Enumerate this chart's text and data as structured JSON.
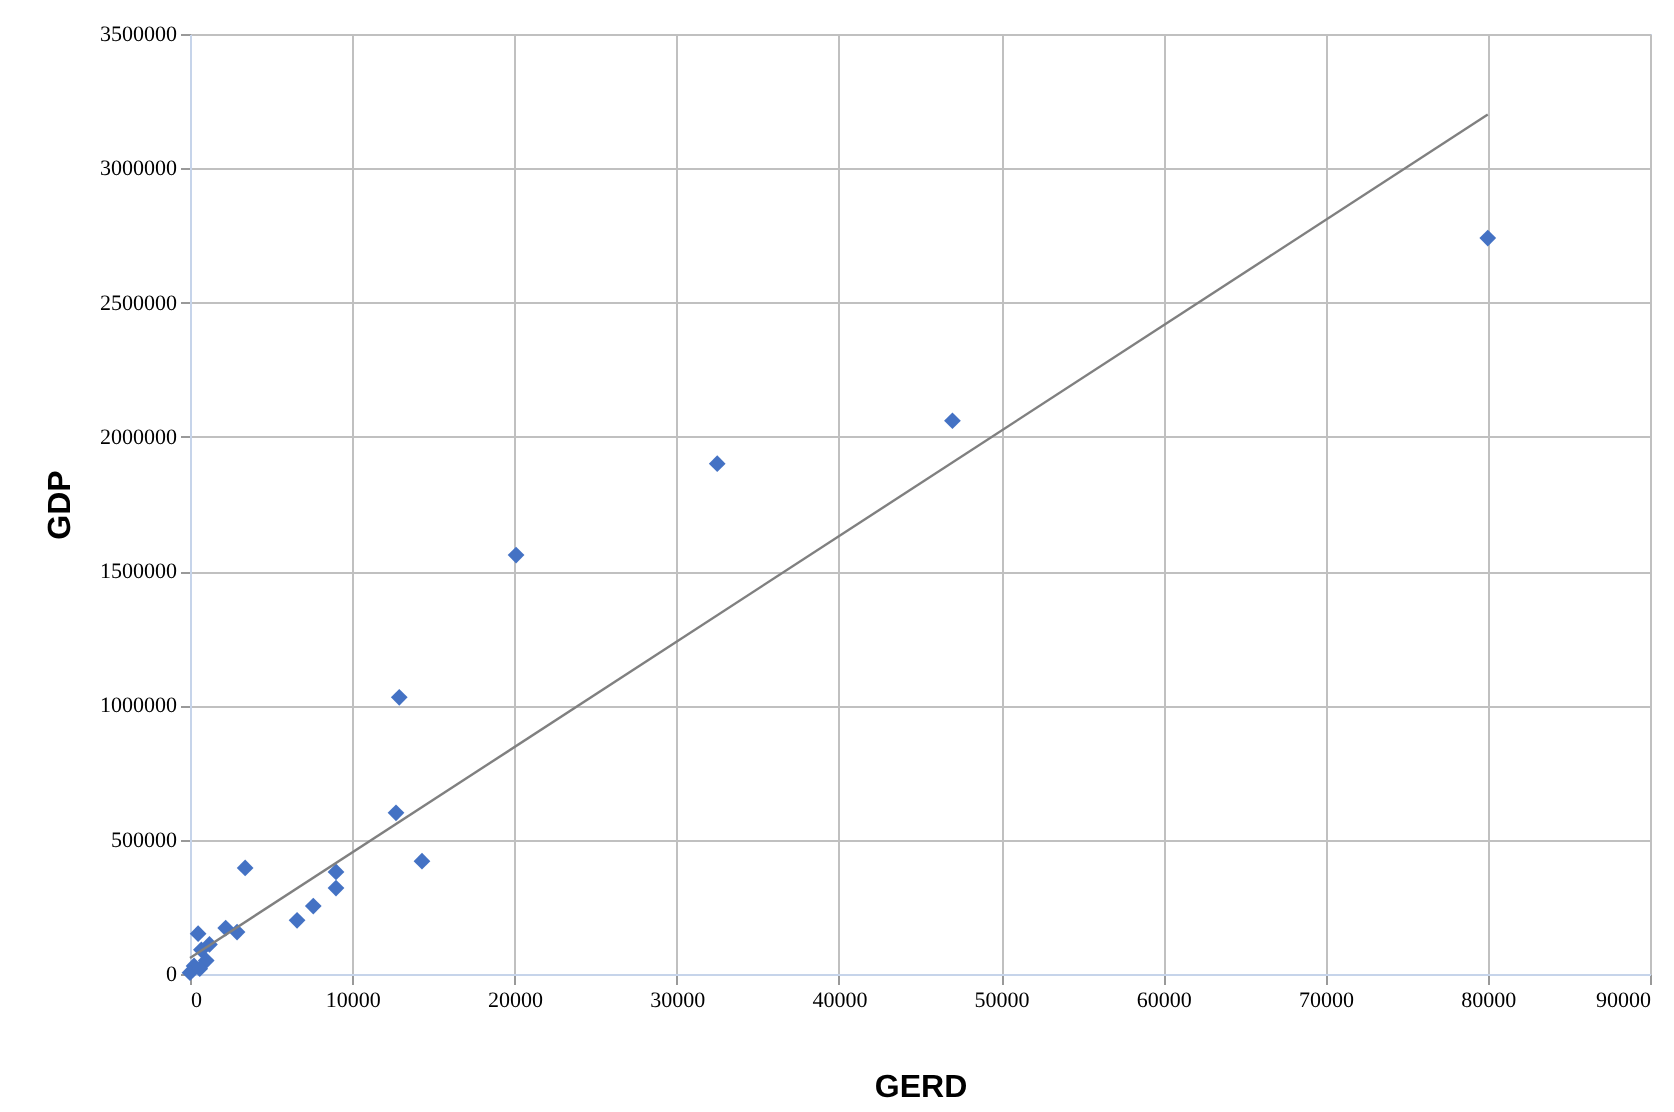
{
  "chart_data": {
    "type": "scatter",
    "xlabel": "GERD",
    "ylabel": "GDP",
    "xlim": [
      0,
      90000
    ],
    "xticks": [
      0,
      10000,
      20000,
      30000,
      40000,
      50000,
      60000,
      70000,
      80000,
      90000
    ],
    "ylim": [
      0,
      3500000
    ],
    "yticks": [
      0,
      500000,
      1000000,
      1500000,
      2000000,
      2500000,
      3000000,
      3500000
    ],
    "grid": true,
    "series": [
      {
        "marker": "diamond",
        "color": "#4472c4",
        "x": [
          80000,
          47000,
          32500,
          20100,
          12900,
          12700,
          14300,
          3400,
          9000,
          9000,
          7600,
          6600,
          2900,
          2200,
          500,
          1200,
          700,
          1000,
          250,
          0,
          600
        ],
        "values": [
          2740000,
          2060000,
          1900000,
          1560000,
          1030000,
          600000,
          420000,
          395000,
          380000,
          320000,
          253000,
          200000,
          156000,
          171000,
          150000,
          110000,
          90000,
          50000,
          30000,
          5000,
          20000
        ]
      },
      {
        "type": "line",
        "marker": "none",
        "color": "#808080",
        "x": [
          0,
          80000
        ],
        "values": [
          60000,
          3200000
        ]
      }
    ]
  }
}
